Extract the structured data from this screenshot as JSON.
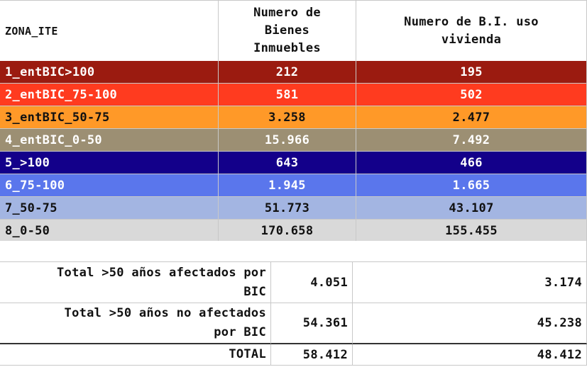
{
  "header": {
    "col1": "ZONA_ITE",
    "col2": "Numero de\nBienes\nInmuebles",
    "col3": "Numero de B.I. uso\nvivienda"
  },
  "rows": [
    {
      "zona": "1_entBIC>100",
      "bienes": "212",
      "vivienda": "195",
      "bg": "#9b1b10",
      "fg": "#ffffff"
    },
    {
      "zona": "2_entBIC_75-100",
      "bienes": "581",
      "vivienda": "502",
      "bg": "#ff3b1f",
      "fg": "#ffffff"
    },
    {
      "zona": "3_entBIC_50-75",
      "bienes": "3.258",
      "vivienda": "2.477",
      "bg": "#ff9928",
      "fg": "#111111"
    },
    {
      "zona": "4_entBIC_0-50",
      "bienes": "15.966",
      "vivienda": "7.492",
      "bg": "#9c8f73",
      "fg": "#ffffff"
    },
    {
      "zona": "5_>100",
      "bienes": "643",
      "vivienda": "466",
      "bg": "#13008a",
      "fg": "#ffffff"
    },
    {
      "zona": "6_75-100",
      "bienes": "1.945",
      "vivienda": "1.665",
      "bg": "#5a76ec",
      "fg": "#ffffff"
    },
    {
      "zona": "7_50-75",
      "bienes": "51.773",
      "vivienda": "43.107",
      "bg": "#a3b5e2",
      "fg": "#111111"
    },
    {
      "zona": "8_0-50",
      "bienes": "170.658",
      "vivienda": "155.455",
      "bg": "#d9d9d9",
      "fg": "#111111"
    }
  ],
  "totals": [
    {
      "label": "Total >50 años afectados por\nBIC",
      "bienes": "4.051",
      "vivienda": "3.174"
    },
    {
      "label": "Total >50 años no afectados\npor BIC",
      "bienes": "54.361",
      "vivienda": "45.238"
    },
    {
      "label": "TOTAL",
      "bienes": "58.412",
      "vivienda": "48.412"
    }
  ]
}
